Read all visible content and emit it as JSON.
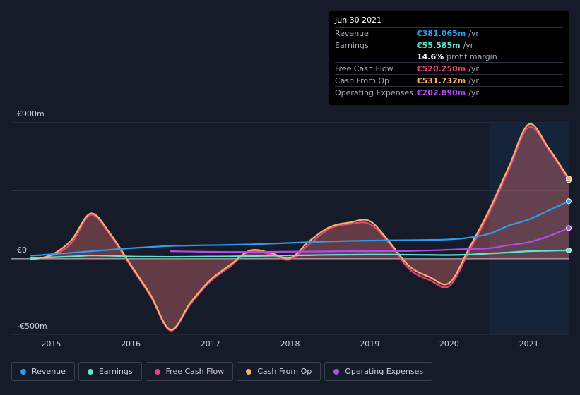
{
  "tooltip": {
    "date": "Jun 30 2021",
    "rows": [
      {
        "label": "Revenue",
        "value": "€381.065m",
        "unit": "/yr",
        "color": "#2f9cef"
      },
      {
        "label": "Earnings",
        "value": "€55.585m",
        "unit": "/yr",
        "color": "#5ee5d2"
      },
      {
        "label": "",
        "value": "14.6%",
        "unit": "profit margin",
        "color": "#ffffff"
      },
      {
        "label": "Free Cash Flow",
        "value": "€520.250m",
        "unit": "/yr",
        "color": "#e2467e"
      },
      {
        "label": "Cash From Op",
        "value": "€531.732m",
        "unit": "/yr",
        "color": "#f6b26b"
      },
      {
        "label": "Operating Expenses",
        "value": "€202.890m",
        "unit": "/yr",
        "color": "#b24cf0"
      }
    ]
  },
  "legend": [
    {
      "label": "Revenue",
      "color": "#2f9cef"
    },
    {
      "label": "Earnings",
      "color": "#5ee5d2"
    },
    {
      "label": "Free Cash Flow",
      "color": "#e2467e"
    },
    {
      "label": "Cash From Op",
      "color": "#f6b26b"
    },
    {
      "label": "Operating Expenses",
      "color": "#b24cf0"
    }
  ],
  "chart_data": {
    "type": "area",
    "y_tick_labels": [
      "€900m",
      "€0",
      "-€500m"
    ],
    "y_ticks": [
      900,
      0,
      -500
    ],
    "ylim": [
      -500,
      900
    ],
    "x_tick_labels": [
      "2015",
      "2016",
      "2017",
      "2018",
      "2019",
      "2020",
      "2021"
    ],
    "x_ticks": [
      2015,
      2016,
      2017,
      2018,
      2019,
      2020,
      2021
    ],
    "xlim": [
      2014.5,
      2021.5
    ],
    "forecast_region_start": 2020.5,
    "series": [
      {
        "name": "Free Cash Flow",
        "color": "#e2467e",
        "x": [
          2014.75,
          2015.0,
          2015.25,
          2015.5,
          2015.75,
          2016.0,
          2016.25,
          2016.5,
          2016.75,
          2017.0,
          2017.25,
          2017.5,
          2017.75,
          2018.0,
          2018.25,
          2018.5,
          2018.75,
          2019.0,
          2019.25,
          2019.5,
          2019.75,
          2020.0,
          2020.25,
          2020.5,
          2020.75,
          2021.0,
          2021.25,
          2021.5
        ],
        "values": [
          -5,
          20,
          100,
          290,
          150,
          -50,
          -250,
          -475,
          -300,
          -150,
          -50,
          50,
          30,
          -5,
          100,
          200,
          230,
          230,
          100,
          -70,
          -140,
          -180,
          50,
          300,
          590,
          870,
          720,
          520
        ]
      },
      {
        "name": "Cash From Op",
        "color": "#f6b26b",
        "x": [
          2014.75,
          2015.0,
          2015.25,
          2015.5,
          2015.75,
          2016.0,
          2016.25,
          2016.5,
          2016.75,
          2017.0,
          2017.25,
          2017.5,
          2017.75,
          2018.0,
          2018.25,
          2018.5,
          2018.75,
          2019.0,
          2019.25,
          2019.5,
          2019.75,
          2020.0,
          2020.25,
          2020.5,
          2020.75,
          2021.0,
          2021.25,
          2021.5
        ],
        "values": [
          -5,
          25,
          120,
          300,
          160,
          -40,
          -240,
          -470,
          -290,
          -140,
          -40,
          55,
          40,
          5,
          120,
          210,
          240,
          250,
          110,
          -50,
          -120,
          -160,
          70,
          320,
          610,
          890,
          730,
          532
        ]
      },
      {
        "name": "Revenue",
        "color": "#2f9cef",
        "x": [
          2014.75,
          2015.0,
          2015.25,
          2015.5,
          2015.75,
          2016.0,
          2016.25,
          2016.5,
          2016.75,
          2017.0,
          2017.25,
          2017.5,
          2017.75,
          2018.0,
          2018.25,
          2018.5,
          2018.75,
          2019.0,
          2019.25,
          2019.5,
          2019.75,
          2020.0,
          2020.25,
          2020.5,
          2020.75,
          2021.0,
          2021.25,
          2021.5
        ],
        "values": [
          20,
          30,
          40,
          50,
          60,
          70,
          78,
          85,
          88,
          90,
          92,
          95,
          100,
          105,
          110,
          115,
          118,
          120,
          122,
          123,
          125,
          128,
          140,
          165,
          220,
          260,
          320,
          381
        ]
      },
      {
        "name": "Earnings",
        "color": "#5ee5d2",
        "x": [
          2014.75,
          2015.0,
          2015.25,
          2015.5,
          2015.75,
          2016.0,
          2016.25,
          2016.5,
          2016.75,
          2017.0,
          2017.25,
          2017.5,
          2017.75,
          2018.0,
          2018.25,
          2018.5,
          2018.75,
          2019.0,
          2019.25,
          2019.5,
          2019.75,
          2020.0,
          2020.25,
          2020.5,
          2020.75,
          2021.0,
          2021.25,
          2021.5
        ],
        "values": [
          5,
          10,
          15,
          22,
          20,
          15,
          14,
          13,
          14,
          15,
          16,
          18,
          20,
          22,
          24,
          26,
          27,
          28,
          28,
          27,
          26,
          25,
          28,
          35,
          42,
          50,
          53,
          56
        ]
      },
      {
        "name": "Operating Expenses",
        "color": "#b24cf0",
        "x": [
          2016.5,
          2016.75,
          2017.0,
          2017.25,
          2017.5,
          2017.75,
          2018.0,
          2018.25,
          2018.5,
          2018.75,
          2019.0,
          2019.25,
          2019.5,
          2019.75,
          2020.0,
          2020.25,
          2020.5,
          2020.75,
          2021.0,
          2021.25,
          2021.5
        ],
        "values": [
          50,
          48,
          46,
          45,
          45,
          46,
          47,
          48,
          49,
          50,
          50,
          51,
          52,
          55,
          60,
          65,
          70,
          90,
          110,
          150,
          203
        ]
      }
    ]
  }
}
